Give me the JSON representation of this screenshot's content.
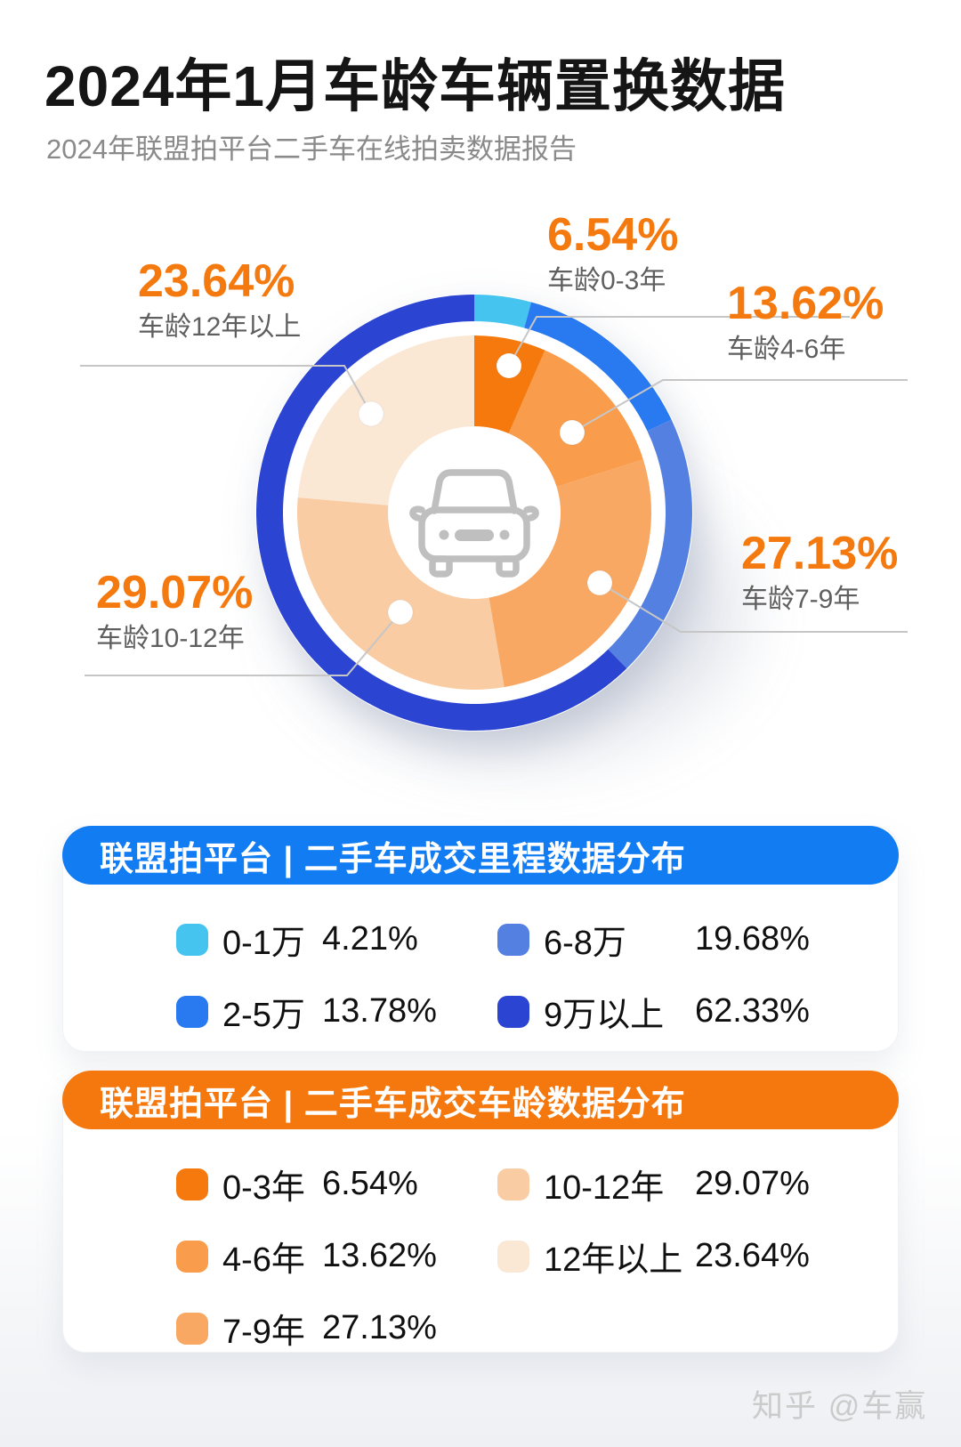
{
  "page": {
    "title": "2024年1月车龄车辆置换数据",
    "subtitle": "2024年联盟拍平台二手车在线拍卖数据报告",
    "watermark": "知乎 @车赢",
    "center_icon": "car-icon",
    "accent_orange": "#F4790E",
    "accent_blue": "#127CF2"
  },
  "chart_data": [
    {
      "type": "pie",
      "title": "联盟拍平台 | 二手车成交车龄数据分布",
      "categories": [
        "0-3年",
        "4-6年",
        "7-9年",
        "10-12年",
        "12年以上"
      ],
      "values": [
        6.54,
        13.62,
        27.13,
        29.07,
        23.64
      ],
      "value_labels": [
        "6.54%",
        "13.62%",
        "27.13%",
        "29.07%",
        "23.64%"
      ],
      "callout_labels": [
        "车龄0-3年",
        "车龄4-6年",
        "车龄7-9年",
        "车龄10-12年",
        "车龄12年以上"
      ],
      "colors": [
        "#F5790D",
        "#F99C4B",
        "#F8A863",
        "#F9CCA3",
        "#FAE7D4"
      ],
      "layout": "inner pie, starts at 12 o'clock, clockwise",
      "legend_position": "orange panel below"
    },
    {
      "type": "donut",
      "title": "联盟拍平台 | 二手车成交里程数据分布",
      "categories": [
        "0-1万",
        "2-5万",
        "6-8万",
        "9万以上"
      ],
      "values": [
        4.21,
        13.78,
        19.68,
        62.33
      ],
      "value_labels": [
        "4.21%",
        "13.78%",
        "19.68%",
        "62.33%"
      ],
      "colors": [
        "#44C4EF",
        "#2979F1",
        "#5480E2",
        "#2B44D2"
      ],
      "layout": "outer ring, starts at 12 o'clock, clockwise",
      "legend_position": "blue panel below"
    }
  ]
}
